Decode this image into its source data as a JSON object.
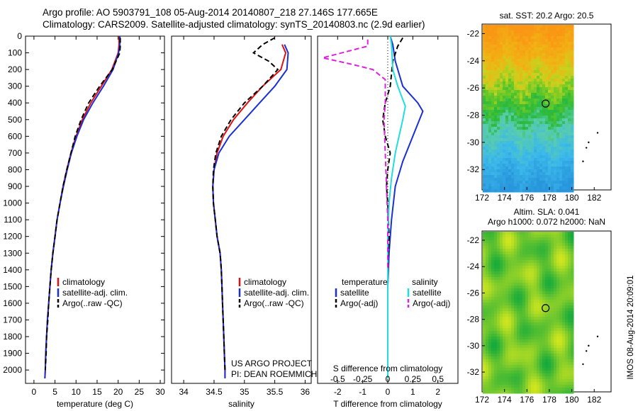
{
  "header": {
    "line1": "Argo profile: AO 5903791_108 05-Aug-2014 20140807_218 27.146S 177.665E",
    "line2": "Climatology: CARS2009. Satellite-adjusted climatology: synTS_20140803.nc (2.9d earlier)"
  },
  "side_stamp": "IMOS 08-Aug-2014 20:09:01",
  "project": {
    "line1": "US ARGO PROJECT",
    "line2": "PI: DEAN ROEMMICH"
  },
  "colors": {
    "clim": "#dd1111",
    "sat": "#1a2fd8",
    "argo": "#000000",
    "sat_s": "#22dddd",
    "argo_s": "#e020e0"
  },
  "chart_data": [
    {
      "type": "line",
      "xlabel": "temperature (deg C)",
      "ylabel": "",
      "xlim": [
        -2,
        31
      ],
      "ylim": [
        2080,
        0
      ],
      "xticks": [
        0,
        5,
        10,
        15,
        20,
        25,
        30
      ],
      "yticks": [
        0,
        100,
        200,
        300,
        400,
        500,
        600,
        700,
        800,
        900,
        1000,
        1100,
        1200,
        1300,
        1400,
        1500,
        1600,
        1700,
        1800,
        1900,
        2000
      ],
      "legend": [
        "climatology",
        "satellite-adj. clim.",
        "Argo(..raw -QC)"
      ],
      "series": [
        {
          "name": "climatology",
          "color": "#dd1111",
          "style": "solid",
          "points": [
            [
              20.2,
              0
            ],
            [
              20.2,
              50
            ],
            [
              20.0,
              100
            ],
            [
              18.5,
              200
            ],
            [
              16.0,
              300
            ],
            [
              13.5,
              400
            ],
            [
              11.5,
              500
            ],
            [
              10.0,
              600
            ],
            [
              8.8,
              700
            ],
            [
              7.8,
              800
            ],
            [
              6.9,
              900
            ],
            [
              6.2,
              1000
            ],
            [
              5.5,
              1100
            ],
            [
              5.0,
              1200
            ],
            [
              4.5,
              1300
            ],
            [
              4.1,
              1400
            ],
            [
              3.8,
              1500
            ],
            [
              3.5,
              1600
            ],
            [
              3.2,
              1700
            ],
            [
              3.0,
              1800
            ],
            [
              2.8,
              1900
            ],
            [
              2.7,
              2000
            ],
            [
              2.6,
              2050
            ]
          ]
        },
        {
          "name": "satellite-adj. clim.",
          "color": "#1a2fd8",
          "style": "solid",
          "points": [
            [
              20.4,
              0
            ],
            [
              20.4,
              50
            ],
            [
              20.1,
              100
            ],
            [
              18.8,
              200
            ],
            [
              16.5,
              300
            ],
            [
              14.0,
              400
            ],
            [
              11.8,
              500
            ],
            [
              10.2,
              600
            ],
            [
              8.9,
              700
            ],
            [
              7.9,
              800
            ],
            [
              7.0,
              900
            ],
            [
              6.2,
              1000
            ],
            [
              5.5,
              1100
            ],
            [
              5.0,
              1200
            ],
            [
              4.5,
              1300
            ],
            [
              4.1,
              1400
            ],
            [
              3.8,
              1500
            ],
            [
              3.5,
              1600
            ],
            [
              3.2,
              1700
            ],
            [
              3.0,
              1800
            ],
            [
              2.8,
              1900
            ],
            [
              2.7,
              2000
            ],
            [
              2.6,
              2050
            ]
          ]
        },
        {
          "name": "Argo(..raw -QC)",
          "color": "#000000",
          "style": "dash",
          "points": [
            [
              20.5,
              10
            ],
            [
              20.5,
              60
            ],
            [
              20.4,
              100
            ],
            [
              18.6,
              200
            ],
            [
              15.6,
              300
            ],
            [
              13.0,
              400
            ],
            [
              11.2,
              500
            ],
            [
              9.8,
              600
            ],
            [
              8.8,
              700
            ],
            [
              7.8,
              800
            ],
            [
              6.9,
              900
            ],
            [
              6.2,
              1000
            ],
            [
              5.5,
              1100
            ],
            [
              5.0,
              1200
            ],
            [
              4.5,
              1300
            ],
            [
              4.1,
              1400
            ],
            [
              3.8,
              1500
            ],
            [
              3.5,
              1600
            ],
            [
              3.3,
              1700
            ],
            [
              3.0,
              1800
            ],
            [
              2.9,
              1900
            ],
            [
              2.7,
              2000
            ]
          ]
        }
      ]
    },
    {
      "type": "line",
      "xlabel": "salinity",
      "ylabel": "",
      "xlim": [
        33.8,
        36.1
      ],
      "ylim": [
        2080,
        0
      ],
      "xticks": [
        34,
        34.5,
        35,
        35.5,
        36
      ],
      "legend": [
        "climatology",
        "satellite-adj. clim.",
        "Argo(..raw -QC)"
      ],
      "series": [
        {
          "name": "climatology",
          "color": "#dd1111",
          "style": "solid",
          "points": [
            [
              35.62,
              50
            ],
            [
              35.68,
              100
            ],
            [
              35.6,
              200
            ],
            [
              35.3,
              300
            ],
            [
              35.05,
              400
            ],
            [
              34.82,
              500
            ],
            [
              34.65,
              600
            ],
            [
              34.55,
              700
            ],
            [
              34.5,
              800
            ],
            [
              34.48,
              900
            ],
            [
              34.49,
              1000
            ],
            [
              34.52,
              1100
            ],
            [
              34.55,
              1200
            ],
            [
              34.6,
              1300
            ],
            [
              34.62,
              1400
            ],
            [
              34.63,
              1500
            ],
            [
              34.64,
              1600
            ],
            [
              34.65,
              1700
            ],
            [
              34.66,
              1800
            ],
            [
              34.67,
              1900
            ],
            [
              34.68,
              2000
            ],
            [
              34.68,
              2050
            ]
          ]
        },
        {
          "name": "satellite-adj. clim.",
          "color": "#1a2fd8",
          "style": "solid",
          "points": [
            [
              35.66,
              50
            ],
            [
              35.72,
              100
            ],
            [
              35.7,
              200
            ],
            [
              35.5,
              300
            ],
            [
              35.25,
              400
            ],
            [
              35.0,
              500
            ],
            [
              34.75,
              600
            ],
            [
              34.58,
              700
            ],
            [
              34.5,
              800
            ],
            [
              34.48,
              900
            ],
            [
              34.49,
              1000
            ],
            [
              34.52,
              1100
            ],
            [
              34.55,
              1200
            ],
            [
              34.6,
              1300
            ],
            [
              34.62,
              1400
            ],
            [
              34.63,
              1500
            ],
            [
              34.64,
              1600
            ],
            [
              34.65,
              1700
            ],
            [
              34.66,
              1800
            ],
            [
              34.67,
              1900
            ],
            [
              34.68,
              2000
            ],
            [
              34.68,
              2050
            ]
          ]
        },
        {
          "name": "Argo(..raw -QC)",
          "color": "#000000",
          "style": "dash",
          "points": [
            [
              35.5,
              10
            ],
            [
              35.3,
              50
            ],
            [
              35.15,
              100
            ],
            [
              35.4,
              150
            ],
            [
              35.55,
              200
            ],
            [
              35.3,
              300
            ],
            [
              35.0,
              400
            ],
            [
              34.78,
              500
            ],
            [
              34.62,
              600
            ],
            [
              34.53,
              700
            ],
            [
              34.49,
              800
            ],
            [
              34.48,
              900
            ],
            [
              34.49,
              1000
            ],
            [
              34.52,
              1100
            ],
            [
              34.55,
              1200
            ],
            [
              34.6,
              1300
            ],
            [
              34.62,
              1400
            ],
            [
              34.63,
              1500
            ],
            [
              34.64,
              1600
            ],
            [
              34.65,
              1700
            ],
            [
              34.66,
              1800
            ],
            [
              34.67,
              1900
            ],
            [
              34.68,
              2000
            ]
          ]
        }
      ]
    },
    {
      "type": "line",
      "xlabel": "T difference from climatology",
      "ylabel": "",
      "xlim": [
        -2.8,
        2.8
      ],
      "ylim": [
        2080,
        0
      ],
      "xticks_T": [
        -2,
        -1,
        0,
        1,
        2
      ],
      "xticks_S": [
        {
          "label": "-0.5",
          "t": -2
        },
        {
          "label": "-0.25",
          "t": -1
        },
        {
          "label": "0",
          "t": 0
        },
        {
          "label": "0.25",
          "t": 1
        },
        {
          "label": "0.5",
          "t": 2
        }
      ],
      "xlabel_top": "S difference from climatology",
      "legend": [
        {
          "group": "temperature",
          "items": [
            "satellite",
            "Argo(-adj)"
          ]
        },
        {
          "group": "salinity",
          "items": [
            "satellite",
            "Argo(-adj)"
          ]
        }
      ],
      "series": [
        {
          "name": "satellite",
          "quantity": "temperature",
          "color": "#1a2fd8",
          "style": "solid",
          "points": [
            [
              0.1,
              0
            ],
            [
              0.2,
              50
            ],
            [
              0.3,
              150
            ],
            [
              0.6,
              300
            ],
            [
              1.2,
              400
            ],
            [
              1.4,
              450
            ],
            [
              1.0,
              600
            ],
            [
              0.6,
              750
            ],
            [
              0.3,
              900
            ],
            [
              0.15,
              1100
            ],
            [
              0.05,
              1300
            ],
            [
              0.0,
              1500
            ],
            [
              0.0,
              2050
            ]
          ]
        },
        {
          "name": "Argo(-adj)",
          "quantity": "temperature",
          "color": "#000000",
          "style": "dash",
          "points": [
            [
              0.6,
              10
            ],
            [
              0.4,
              60
            ],
            [
              0.2,
              150
            ],
            [
              0.1,
              300
            ],
            [
              -0.1,
              400
            ],
            [
              -0.2,
              500
            ],
            [
              -0.1,
              600
            ],
            [
              0.1,
              700
            ],
            [
              0.0,
              800
            ],
            [
              -0.05,
              900
            ],
            [
              0.0,
              1000
            ],
            [
              0.05,
              1200
            ],
            [
              0.0,
              1400
            ],
            [
              0.0,
              2000
            ]
          ]
        },
        {
          "name": "satellite",
          "quantity": "salinity",
          "color": "#22dddd",
          "style": "solid",
          "points": [
            [
              0.1,
              0
            ],
            [
              0.15,
              50
            ],
            [
              0.2,
              200
            ],
            [
              0.4,
              300
            ],
            [
              0.7,
              420
            ],
            [
              0.6,
              500
            ],
            [
              0.45,
              600
            ],
            [
              0.3,
              700
            ],
            [
              0.15,
              850
            ],
            [
              0.05,
              1000
            ],
            [
              0.0,
              1200
            ],
            [
              0.0,
              2050
            ]
          ]
        },
        {
          "name": "Argo(-adj)",
          "quantity": "salinity",
          "color": "#e020e0",
          "style": "dash",
          "points": [
            [
              -0.8,
              20
            ],
            [
              -0.8,
              60
            ],
            [
              -2.6,
              130
            ],
            [
              -1.4,
              170
            ],
            [
              -0.6,
              200
            ],
            [
              -0.1,
              260
            ],
            [
              -0.1,
              400
            ],
            [
              -0.15,
              500
            ],
            [
              -0.1,
              700
            ],
            [
              -0.05,
              900
            ],
            [
              0.0,
              1100
            ],
            [
              0.0,
              1400
            ]
          ]
        }
      ]
    },
    {
      "type": "heatmap",
      "title": "sat. SST: 20.2 Argo: 20.5",
      "xticks": [
        172,
        174,
        176,
        178,
        180,
        182
      ],
      "yticks": [
        -22,
        -24,
        -26,
        -28,
        -30,
        -32
      ],
      "xlim": [
        172,
        183.5
      ],
      "ylim": [
        -33.5,
        -21.3
      ],
      "marker": {
        "lon": 177.665,
        "lat": -27.146
      }
    },
    {
      "type": "heatmap",
      "title": "Altim. SLA: 0.041",
      "subtitle": "Argo h1000: 0.072 h2000: NaN",
      "xticks": [
        172,
        174,
        176,
        178,
        180,
        182
      ],
      "yticks": [
        -22,
        -24,
        -26,
        -28,
        -30,
        -32
      ],
      "xlim": [
        172,
        183.5
      ],
      "ylim": [
        -33.5,
        -21.3
      ],
      "marker": {
        "lon": 177.665,
        "lat": -27.146
      }
    }
  ]
}
